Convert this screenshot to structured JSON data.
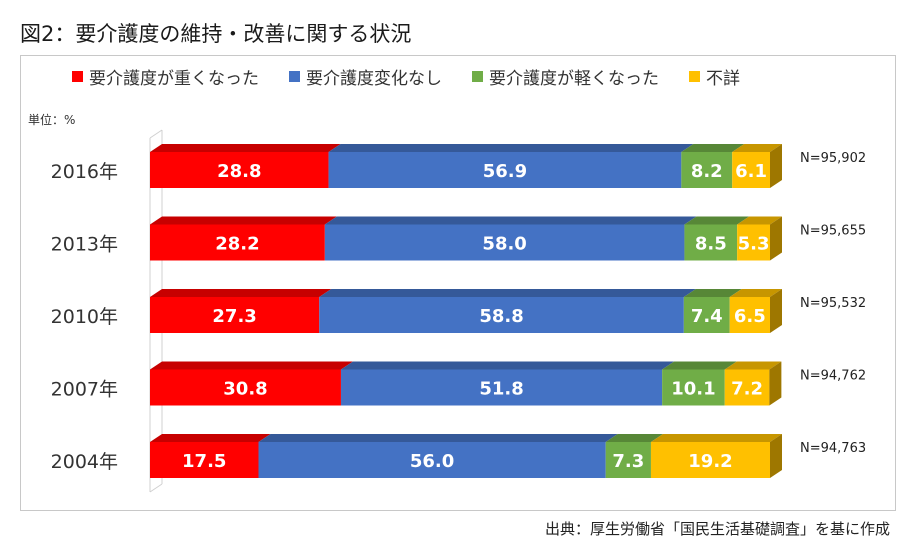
{
  "title": "図2：要介護度の維持・改善に関する状況",
  "unit_label": "単位：%",
  "source": "出典：厚生労働省「国民生活基礎調査」を基に作成",
  "colors": {
    "worse": "#ff0000",
    "nochange": "#4472c4",
    "better": "#70ad47",
    "unknown": "#ffc000"
  },
  "chart_data": {
    "type": "bar",
    "orientation": "horizontal",
    "stacked": true,
    "percent_stacked": true,
    "title": "図2：要介護度の維持・改善に関する状況",
    "categories": [
      "2016年",
      "2013年",
      "2010年",
      "2007年",
      "2004年"
    ],
    "series": [
      {
        "name": "要介護度が重くなった",
        "color_key": "worse",
        "values": [
          28.8,
          28.2,
          27.3,
          30.8,
          17.5
        ]
      },
      {
        "name": "要介護度変化なし",
        "color_key": "nochange",
        "values": [
          56.9,
          58.0,
          58.8,
          51.8,
          56.0
        ]
      },
      {
        "name": "要介護度が軽くなった",
        "color_key": "better",
        "values": [
          8.2,
          8.5,
          7.4,
          10.1,
          7.3
        ]
      },
      {
        "name": "不詳",
        "color_key": "unknown",
        "values": [
          6.1,
          5.3,
          6.5,
          7.2,
          19.2
        ]
      }
    ],
    "value_labels": [
      [
        "28.8",
        "56.9",
        "8.2",
        "6.1"
      ],
      [
        "28.2",
        "58.0",
        "8.5",
        "5.3"
      ],
      [
        "27.3",
        "58.8",
        "7.4",
        "6.5"
      ],
      [
        "30.8",
        "51.8",
        "10.1",
        "7.2"
      ],
      [
        "17.5",
        "56.0",
        "7.3",
        "19.2"
      ]
    ],
    "n_labels": [
      "N=95,902",
      "N=95,655",
      "N=95,532",
      "N=94,762",
      "N=94,763"
    ],
    "legend_position": "top",
    "grid": false,
    "ylabel": "単位：%"
  }
}
